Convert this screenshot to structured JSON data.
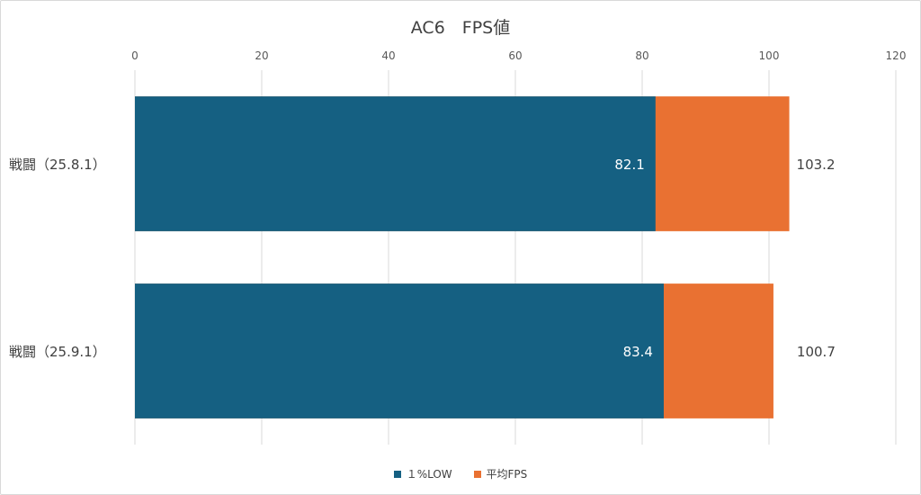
{
  "chart_data": {
    "type": "bar",
    "orientation": "horizontal",
    "stacking": "overlay",
    "title": "AC6　FPS値",
    "categories": [
      "戦闘（25.8.1）",
      "戦闘（25.9.1）"
    ],
    "series": [
      {
        "name": "平均FPS",
        "values": [
          103.2,
          100.7
        ],
        "color": "#e97132"
      },
      {
        "name": "１%LOW",
        "values": [
          82.1,
          83.4
        ],
        "color": "#156082"
      }
    ],
    "xlim": [
      0,
      120
    ],
    "xticks": [
      "0",
      "20",
      "40",
      "60",
      "80",
      "100",
      "120"
    ],
    "x_axis_position": "top",
    "grid": true,
    "legend": "bottom",
    "data_labels": {
      "low": [
        "82.1",
        "83.4"
      ],
      "avg": [
        "103.2",
        "100.7"
      ]
    }
  },
  "legend": {
    "items": [
      {
        "label": "１%LOW",
        "color": "#156082"
      },
      {
        "label": "平均FPS",
        "color": "#e97132"
      }
    ]
  }
}
